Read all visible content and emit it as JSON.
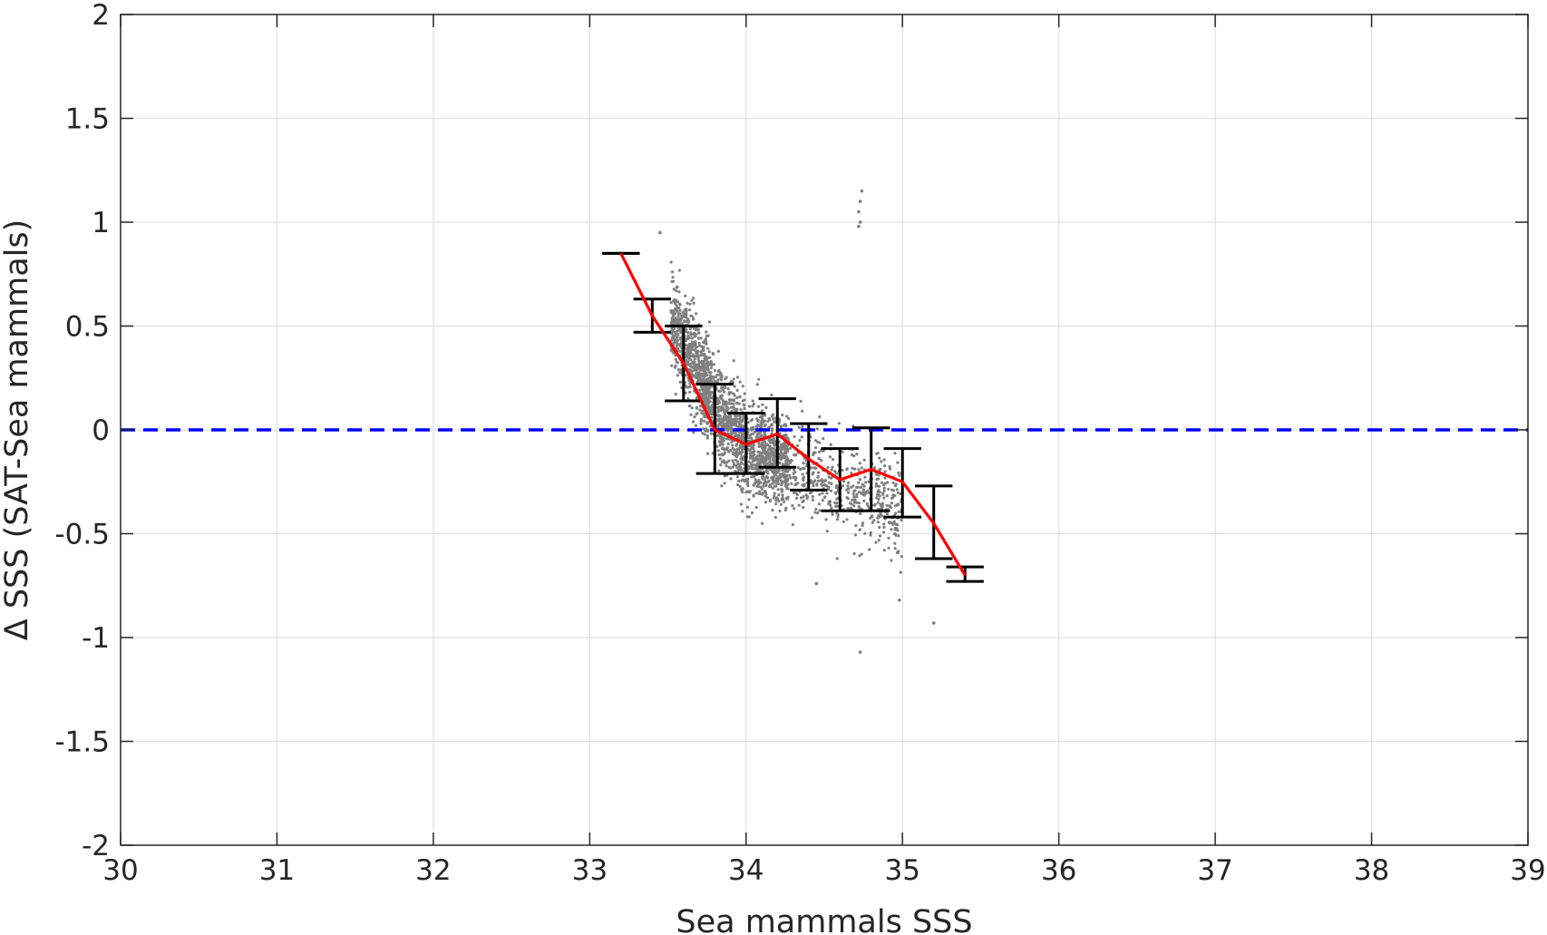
{
  "chart_data": {
    "type": "scatter",
    "title": "",
    "xlabel": "Sea mammals SSS",
    "ylabel": "Δ SSS (SAT-Sea mammals)",
    "xlim": [
      30,
      39
    ],
    "ylim": [
      -2,
      2
    ],
    "xticks": [
      30,
      31,
      32,
      33,
      34,
      35,
      36,
      37,
      38,
      39
    ],
    "yticks": [
      -2,
      -1.5,
      -1,
      -0.5,
      0,
      0.5,
      1,
      1.5,
      2
    ],
    "xtick_labels": [
      "30",
      "31",
      "32",
      "33",
      "34",
      "35",
      "36",
      "37",
      "38",
      "39"
    ],
    "ytick_labels": [
      "-2",
      "-1.5",
      "-1",
      "-0.5",
      "0",
      "0.5",
      "1",
      "1.5",
      "2"
    ],
    "grid": true,
    "colors": {
      "scatter": "#808080",
      "mean_line": "#ff0000",
      "error_bars": "#000000",
      "zero_line": "#0000ff",
      "grid": "#e0e0e0",
      "axes": "#262626"
    },
    "scatter_cloud": {
      "description_points": "dense cloud of matchup points",
      "center_line": [
        [
          33.5,
          0.55
        ],
        [
          33.7,
          0.28
        ],
        [
          33.85,
          0.05
        ],
        [
          34.0,
          -0.08
        ],
        [
          34.2,
          -0.15
        ],
        [
          34.5,
          -0.25
        ],
        [
          34.8,
          -0.32
        ],
        [
          35.0,
          -0.4
        ]
      ],
      "outliers": [
        [
          34.72,
          1.05
        ],
        [
          34.73,
          1.1
        ],
        [
          34.74,
          1.15
        ],
        [
          34.73,
          1.0
        ],
        [
          34.72,
          0.98
        ],
        [
          33.45,
          0.95
        ],
        [
          34.73,
          -1.07
        ],
        [
          35.2,
          -0.93
        ],
        [
          34.98,
          -0.82
        ],
        [
          34.45,
          -0.74
        ]
      ]
    },
    "reference_line": {
      "y": 0,
      "style": "dashed"
    },
    "series": [
      {
        "type": "line",
        "x": [
          33.2,
          33.4,
          33.6,
          33.8,
          34.0,
          34.2,
          34.4,
          34.6,
          34.8,
          35.0,
          35.2,
          35.4
        ],
        "y": [
          0.85,
          0.55,
          0.32,
          0.0,
          -0.07,
          -0.02,
          -0.14,
          -0.24,
          -0.19,
          -0.25,
          -0.45,
          -0.7
        ]
      }
    ],
    "error_bars": {
      "x": [
        33.2,
        33.4,
        33.6,
        33.8,
        34.0,
        34.2,
        34.4,
        34.6,
        34.8,
        35.0,
        35.2,
        35.4
      ],
      "low": [
        0.85,
        0.47,
        0.14,
        -0.21,
        -0.21,
        -0.18,
        -0.29,
        -0.39,
        -0.39,
        -0.42,
        -0.62,
        -0.73
      ],
      "high": [
        0.85,
        0.63,
        0.5,
        0.22,
        0.08,
        0.15,
        0.03,
        -0.09,
        0.01,
        -0.09,
        -0.27,
        -0.66
      ]
    }
  }
}
